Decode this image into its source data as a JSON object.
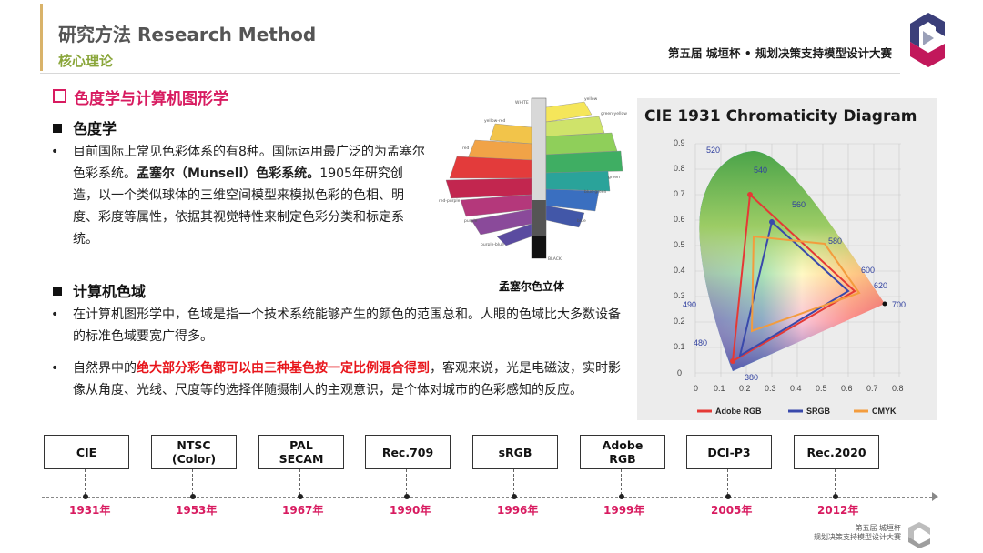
{
  "header": {
    "title": "研究方法 Research  Method",
    "subtitle": "核心理论",
    "competition": "第五届 城垣杯 • 规划决策支持模型设计大赛"
  },
  "section": {
    "title": "色度学与计算机图形学"
  },
  "colorimetry": {
    "heading": "色度学",
    "para_pre": "目前国际上常见色彩体系的有8种。国际运用最广泛的为孟塞尔色彩系统。",
    "para_bold": "孟塞尔（Munsell）色彩系统。",
    "para_post": "1905年研究创造，以一个类似球体的三维空间模型来模拟色彩的色相、明度、彩度等属性，依据其视觉特性来制定色彩分类和标定系统。"
  },
  "munsell": {
    "caption": "孟塞尔色立体",
    "labels": [
      "WHITE",
      "yellow",
      "green-yellow",
      "yellow-red",
      "red",
      "green",
      "red-purple",
      "blue-green",
      "purple",
      "blue",
      "purple-blue",
      "BLACK"
    ]
  },
  "gamut": {
    "heading": "计算机色域",
    "bullet1": "在计算机图形学中，色域是指一个技术系统能够产生的颜色的范围总和。人眼的色域比大多数设备的标准色域要宽广得多。",
    "bullet2_pre": "自然界中的",
    "bullet2_hl": "绝大部分彩色都可以由三种基色按一定比例混合得到",
    "bullet2_post": "，客观来说，光是电磁波，实时影像从角度、光线、尺度等的选择伴随摄制人的主观意识，是个体对城市的色彩感知的反应。"
  },
  "cie": {
    "title": "CIE 1931 Chromaticity Diagram",
    "x_ticks": [
      "0",
      "0.1",
      "0.2",
      "0.3",
      "0.4",
      "0.5",
      "0.6",
      "0.7",
      "0.8"
    ],
    "y_ticks": [
      "0.9",
      "0.8",
      "0.7",
      "0.6",
      "0.5",
      "0.4",
      "0.3",
      "0.2",
      "0.1",
      "0"
    ],
    "wavelengths": [
      "520",
      "540",
      "560",
      "580",
      "600",
      "620",
      "700",
      "490",
      "480",
      "380"
    ],
    "legend": [
      "Adobe RGB",
      "SRGB",
      "CMYK"
    ],
    "colors": {
      "adobe": "#e53935",
      "srgb": "#3949ab",
      "cmyk": "#f39c3d"
    }
  },
  "timeline": {
    "items": [
      {
        "label": "CIE",
        "year": "1931年"
      },
      {
        "label": "NTSC\n(Color)",
        "year": "1953年"
      },
      {
        "label": "PAL\nSECAM",
        "year": "1967年"
      },
      {
        "label": "Rec.709",
        "year": "1990年"
      },
      {
        "label": "sRGB",
        "year": "1996年"
      },
      {
        "label": "Adobe\nRGB",
        "year": "1999年"
      },
      {
        "label": "DCI-P3",
        "year": "2005年"
      },
      {
        "label": "Rec.2020",
        "year": "2012年"
      }
    ]
  },
  "footer": {
    "line1": "第五届 城垣杯",
    "line2": "规划决策支持模型设计大赛"
  }
}
